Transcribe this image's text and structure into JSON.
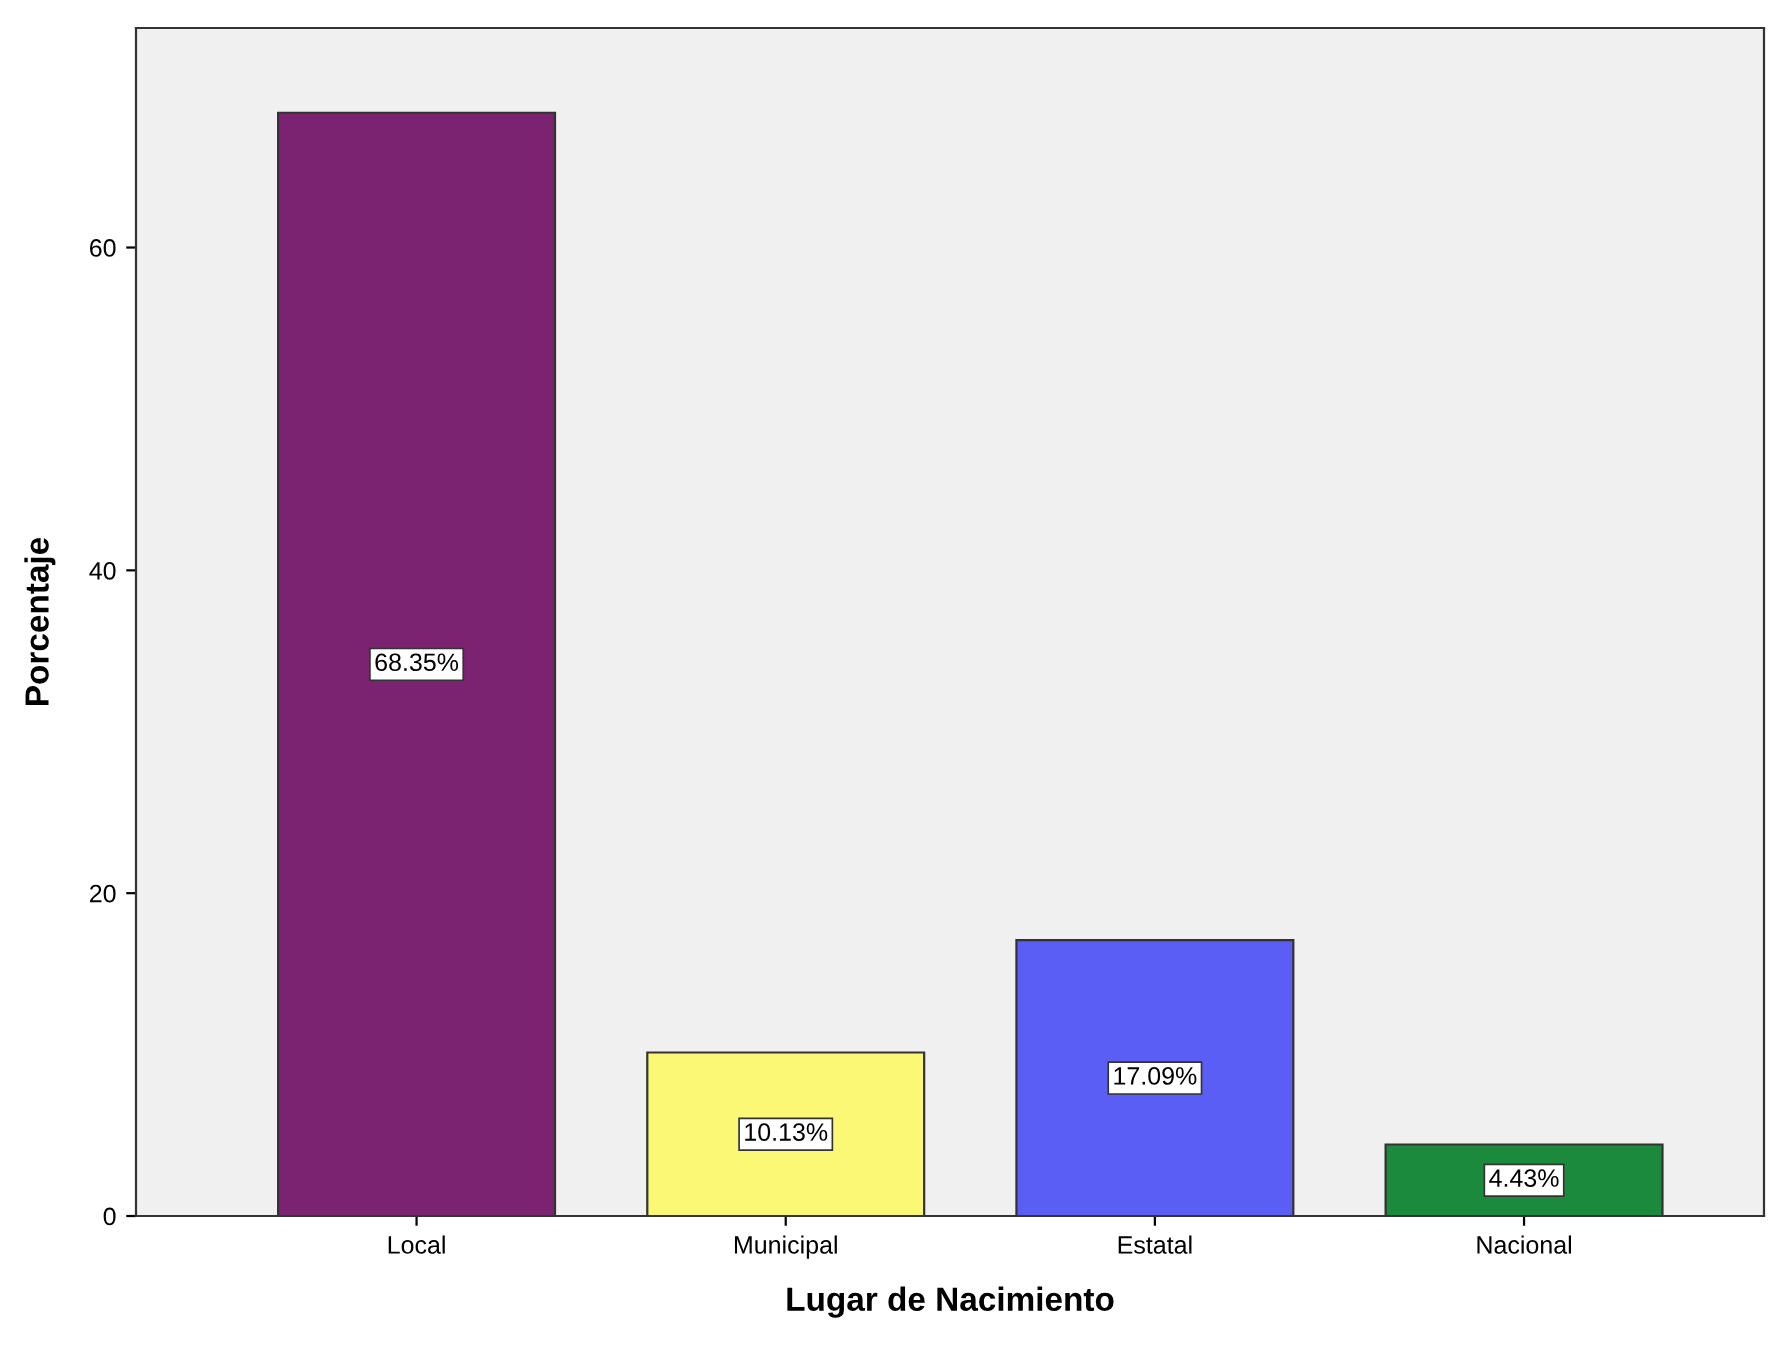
{
  "chart_data": {
    "type": "bar",
    "xlabel": "Lugar de Nacimiento",
    "ylabel": "Porcentaje",
    "categories": [
      "Local",
      "Municipal",
      "Estatal",
      "Nacional"
    ],
    "values": [
      68.35,
      10.13,
      17.09,
      4.43
    ],
    "colors": [
      "#7b2271",
      "#fbf876",
      "#5a5ef5",
      "#1b8a3c"
    ],
    "value_labels": [
      "68.35%",
      "10.13%",
      "17.09%",
      "4.43%"
    ],
    "ylim": [
      0,
      73.6
    ],
    "yticks": [
      0,
      20,
      40,
      60
    ],
    "grid": false,
    "legend": false
  }
}
